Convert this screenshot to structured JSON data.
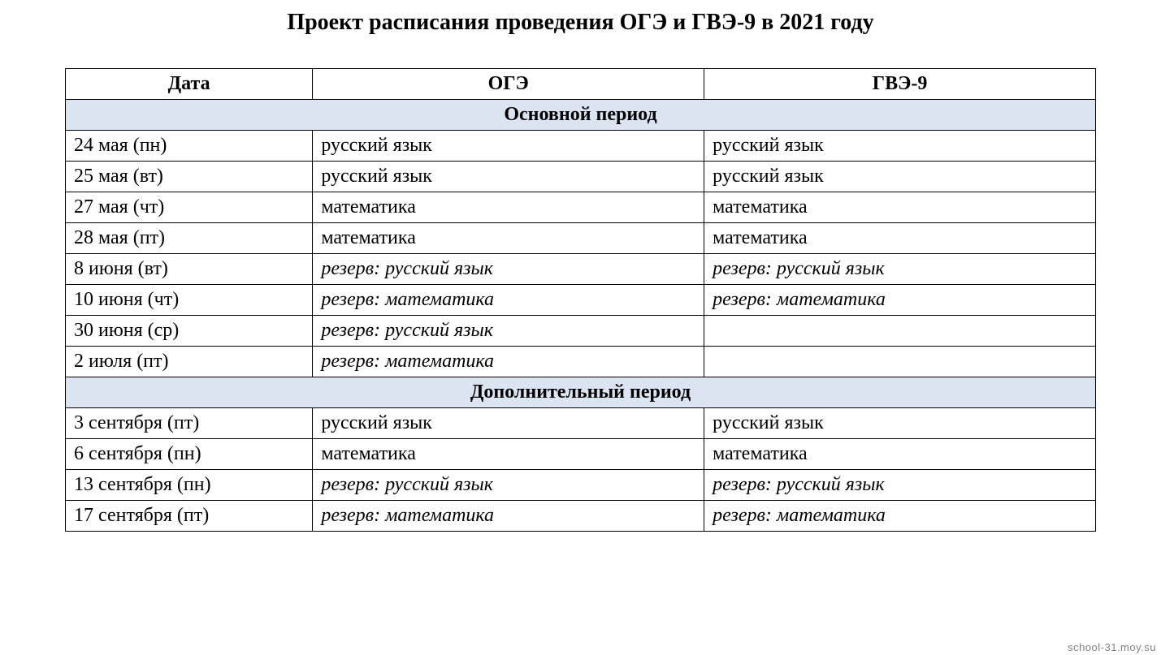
{
  "title": "Проект расписания проведения ОГЭ и ГВЭ-9 в 2021 году",
  "columns": {
    "date": "Дата",
    "oge": "ОГЭ",
    "gve": "ГВЭ-9"
  },
  "sections": [
    {
      "name": "Основной период",
      "rows": [
        {
          "date": "24 мая (пн)",
          "oge": "русский язык",
          "gve": "русский язык",
          "italic": false
        },
        {
          "date": "25 мая (вт)",
          "oge": "русский язык",
          "gve": "русский язык",
          "italic": false
        },
        {
          "date": "27 мая (чт)",
          "oge": "математика",
          "gve": "математика",
          "italic": false
        },
        {
          "date": "28 мая (пт)",
          "oge": "математика",
          "gve": "математика",
          "italic": false
        },
        {
          "date": "8 июня (вт)",
          "oge": "резерв: русский язык",
          "gve": "резерв: русский язык",
          "italic": true
        },
        {
          "date": "10 июня (чт)",
          "oge": "резерв: математика",
          "gve": "резерв: математика",
          "italic": true
        },
        {
          "date": "30 июня (ср)",
          "oge": "резерв: русский язык",
          "gve": "",
          "italic": true
        },
        {
          "date": "2 июля (пт)",
          "oge": "резерв: математика",
          "gve": "",
          "italic": true
        }
      ]
    },
    {
      "name": "Дополнительный период",
      "rows": [
        {
          "date": "3 сентября (пт)",
          "oge": "русский язык",
          "gve": "русский язык",
          "italic": false
        },
        {
          "date": "6 сентября (пн)",
          "oge": "математика",
          "gve": "математика",
          "italic": false
        },
        {
          "date": "13 сентября (пн)",
          "oge": "резерв: русский язык",
          "gve": "резерв: русский язык",
          "italic": true
        },
        {
          "date": "17 сентября (пт)",
          "oge": "резерв: математика",
          "gve": "резерв: математика",
          "italic": true
        }
      ]
    }
  ],
  "watermark": "school-31.moy.su",
  "style": {
    "section_bg": "#dbe4f0",
    "border_color": "#000000",
    "font_family": "Times New Roman",
    "title_fontsize": 28,
    "cell_fontsize": 24,
    "col_widths_pct": [
      24,
      38,
      38
    ]
  }
}
